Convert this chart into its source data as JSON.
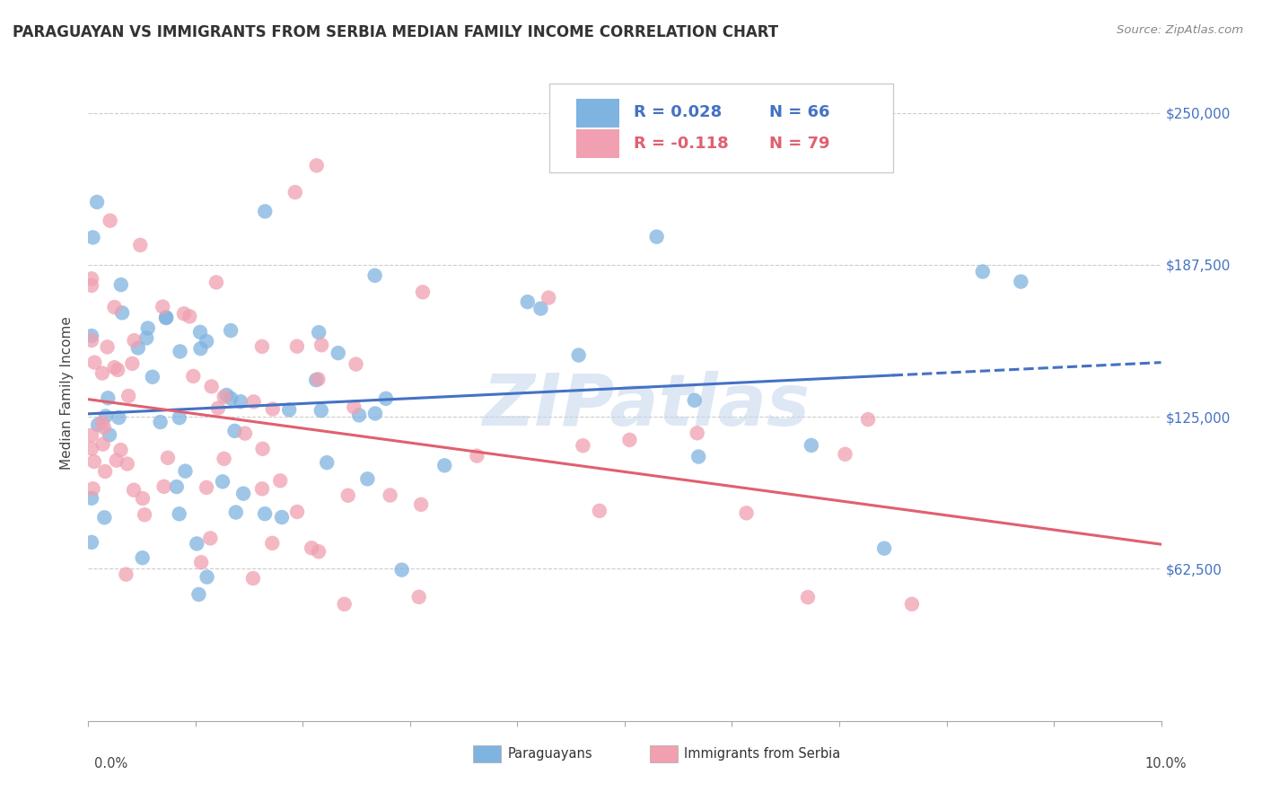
{
  "title": "PARAGUAYAN VS IMMIGRANTS FROM SERBIA MEDIAN FAMILY INCOME CORRELATION CHART",
  "source": "Source: ZipAtlas.com",
  "ylabel": "Median Family Income",
  "xlim": [
    0.0,
    0.1
  ],
  "ylim": [
    0,
    270000
  ],
  "yticks": [
    0,
    62500,
    125000,
    187500,
    250000
  ],
  "ytick_labels_right": [
    "$62,500",
    "$125,000",
    "$187,500",
    "$250,000"
  ],
  "color_blue": "#7fb3e0",
  "color_pink": "#f0a0b0",
  "color_blue_line": "#4472c4",
  "color_pink_line": "#e06070",
  "color_grid": "#cccccc",
  "watermark_color": "#c8d8ee",
  "legend_r1": "R = 0.028",
  "legend_n1": "N = 66",
  "legend_r2": "R = -0.118",
  "legend_n2": "N = 79",
  "seed": 12345,
  "n_par": 66,
  "n_ser": 79
}
